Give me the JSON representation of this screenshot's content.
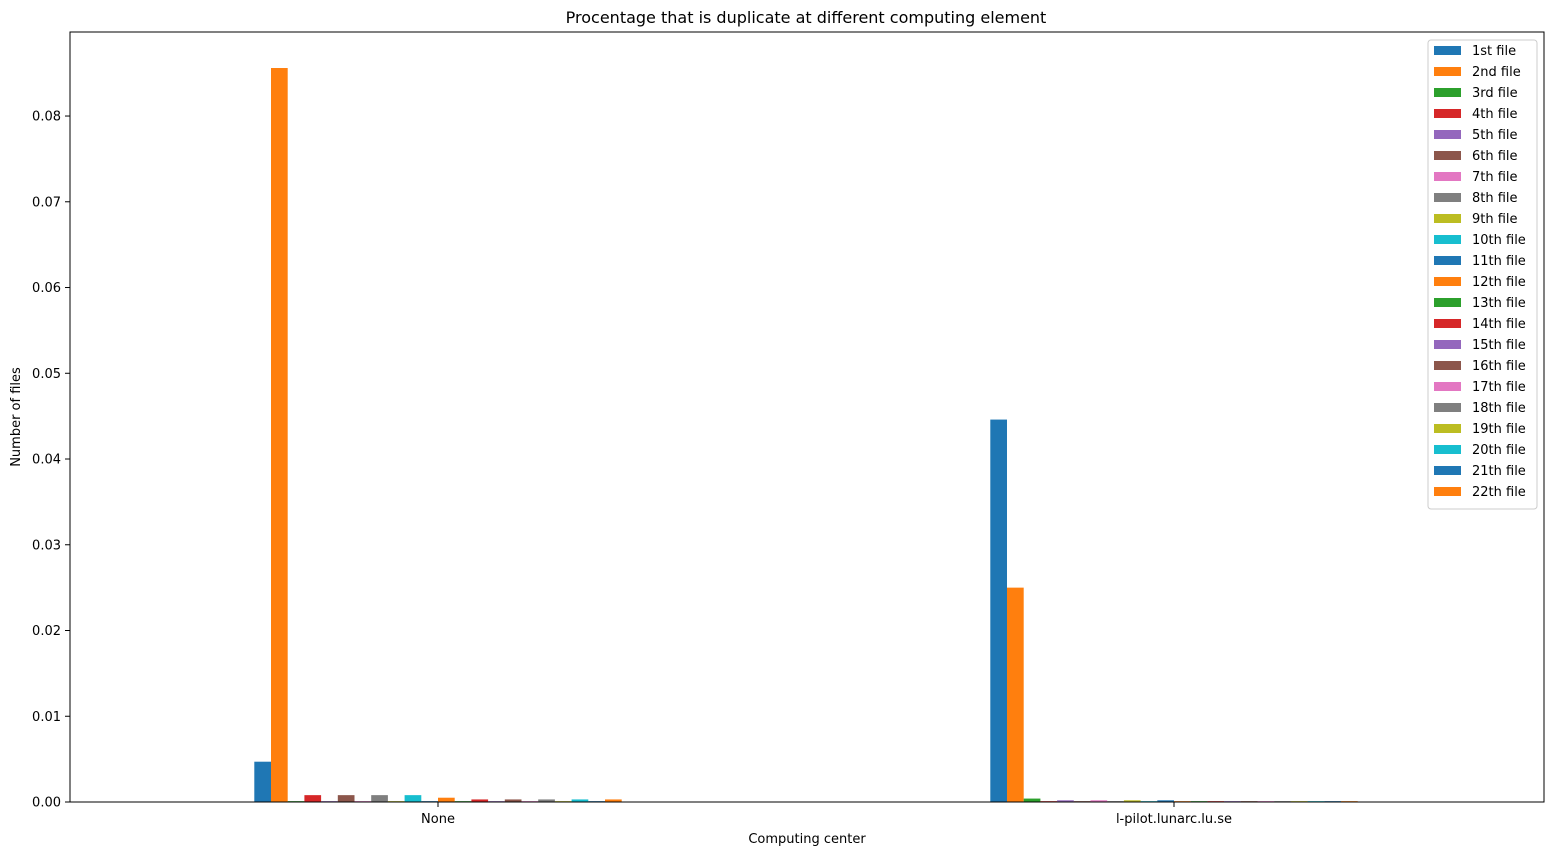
{
  "chart_data": {
    "type": "bar",
    "title": "Procentage that is duplicate at different computing element",
    "xlabel": "Computing center",
    "ylabel": "Number of files",
    "categories": [
      "None",
      "l-pilot.lunarc.lu.se"
    ],
    "ylim": [
      0,
      0.0898
    ],
    "yticks": [
      0.0,
      0.01,
      0.02,
      0.03,
      0.04,
      0.05,
      0.06,
      0.07,
      0.08
    ],
    "ytick_labels": [
      "0.00",
      "0.01",
      "0.02",
      "0.03",
      "0.04",
      "0.05",
      "0.06",
      "0.07",
      "0.08"
    ],
    "legend_position": "top-right",
    "grid": false,
    "series": [
      {
        "name": "1st file",
        "color": "#1f77b4",
        "values": [
          0.0047,
          0.0446
        ]
      },
      {
        "name": "2nd file",
        "color": "#ff7f0e",
        "values": [
          0.0856,
          0.025
        ]
      },
      {
        "name": "3rd file",
        "color": "#2ca02c",
        "values": [
          0.0001,
          0.0004
        ]
      },
      {
        "name": "4th file",
        "color": "#d62728",
        "values": [
          0.0008,
          0.0001
        ]
      },
      {
        "name": "5th file",
        "color": "#9467bd",
        "values": [
          0.0001,
          0.0002
        ]
      },
      {
        "name": "6th file",
        "color": "#8c564b",
        "values": [
          0.0008,
          0.0001
        ]
      },
      {
        "name": "7th file",
        "color": "#e377c2",
        "values": [
          0.0001,
          0.0002
        ]
      },
      {
        "name": "8th file",
        "color": "#7f7f7f",
        "values": [
          0.0008,
          0.0001
        ]
      },
      {
        "name": "9th file",
        "color": "#bcbd22",
        "values": [
          0.0001,
          0.0002
        ]
      },
      {
        "name": "10th file",
        "color": "#17becf",
        "values": [
          0.0008,
          0.0001
        ]
      },
      {
        "name": "11th file",
        "color": "#1f77b4",
        "values": [
          0.0001,
          0.0002
        ]
      },
      {
        "name": "12th file",
        "color": "#ff7f0e",
        "values": [
          0.0005,
          0.0001
        ]
      },
      {
        "name": "13th file",
        "color": "#2ca02c",
        "values": [
          0.0001,
          0.0001
        ]
      },
      {
        "name": "14th file",
        "color": "#d62728",
        "values": [
          0.0003,
          0.0001
        ]
      },
      {
        "name": "15th file",
        "color": "#9467bd",
        "values": [
          0.0001,
          0.0001
        ]
      },
      {
        "name": "16th file",
        "color": "#8c564b",
        "values": [
          0.0003,
          0.0001
        ]
      },
      {
        "name": "17th file",
        "color": "#e377c2",
        "values": [
          0.0001,
          0.0001
        ]
      },
      {
        "name": "18th file",
        "color": "#7f7f7f",
        "values": [
          0.0003,
          0.0001
        ]
      },
      {
        "name": "19th file",
        "color": "#bcbd22",
        "values": [
          0.0001,
          0.0001
        ]
      },
      {
        "name": "20th file",
        "color": "#17becf",
        "values": [
          0.0003,
          0.0001
        ]
      },
      {
        "name": "21th file",
        "color": "#1f77b4",
        "values": [
          0.0001,
          0.0001
        ]
      },
      {
        "name": "22th file",
        "color": "#ff7f0e",
        "values": [
          0.0003,
          0.0001
        ]
      }
    ]
  }
}
